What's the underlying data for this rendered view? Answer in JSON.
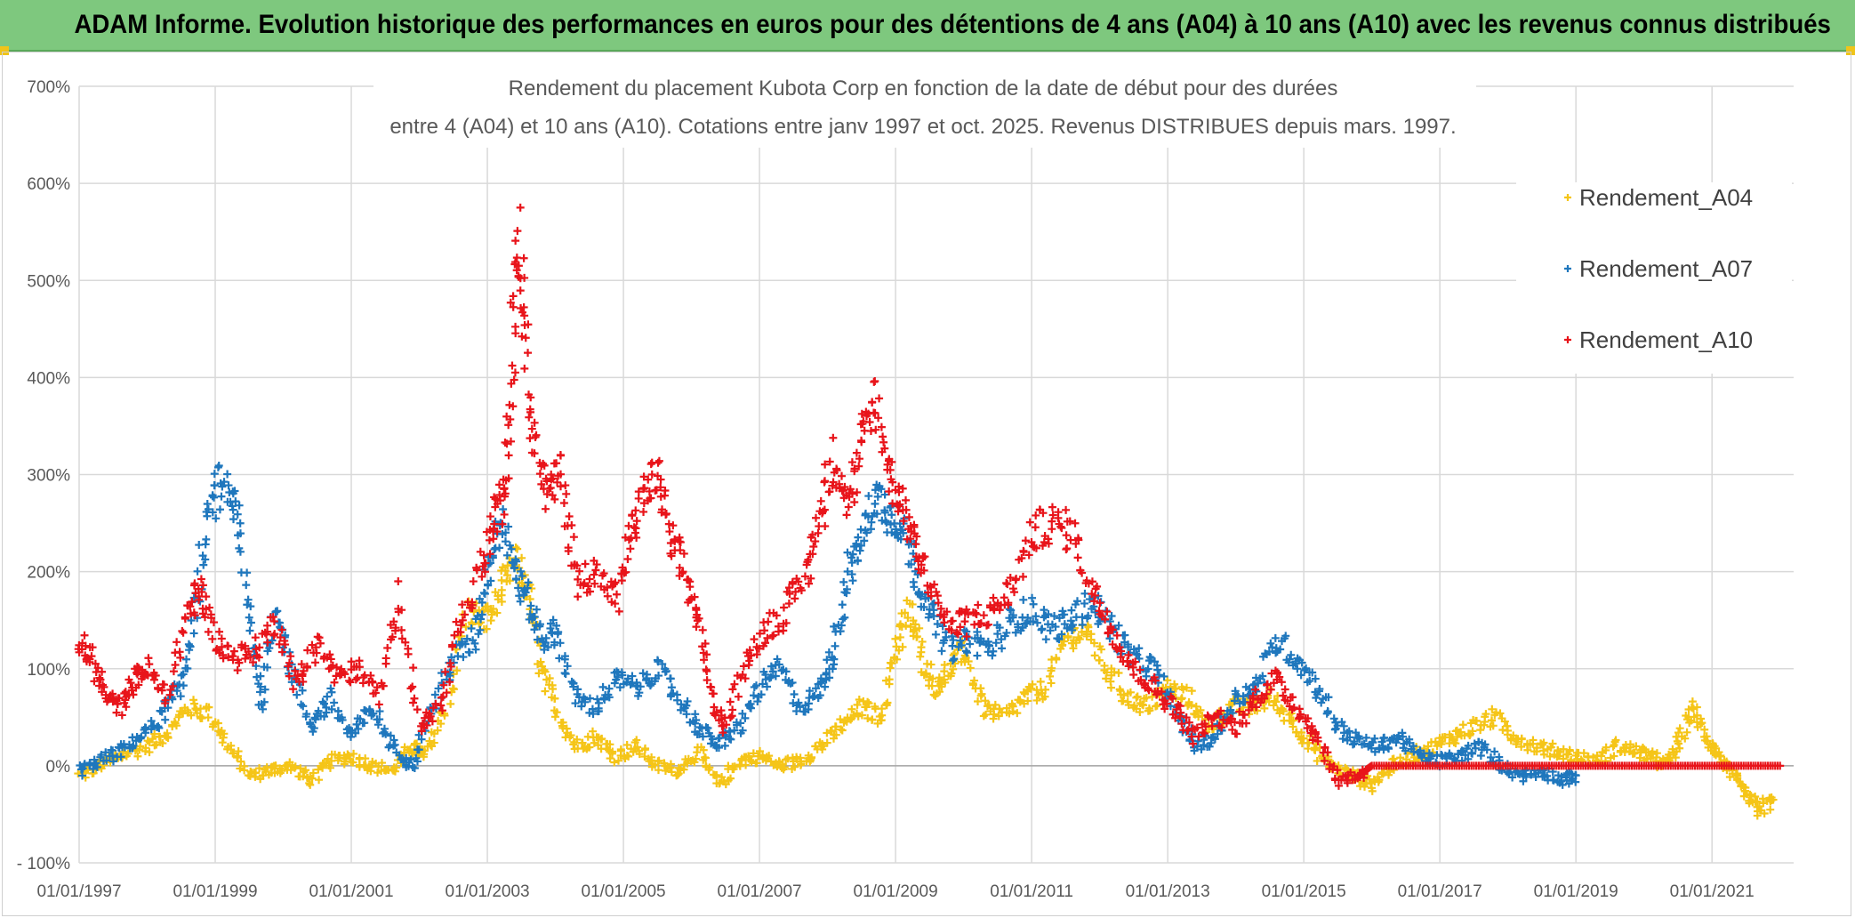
{
  "banner": {
    "title": "ADAM Informe. Evolution historique des performances en euros pour des détentions de 4 ans (A04) à 10 ans (A10) avec les revenus connus distribués",
    "background": "#7ec87e"
  },
  "chart_data": {
    "type": "scatter",
    "title_line1": "Rendement du placement Kubota Corp en fonction de la date de début pour des durées",
    "title_line2": "entre 4 (A04) et 10 ans (A10). Cotations entre janv 1997 et oct. 2025. Revenus DISTRIBUES depuis mars. 1997.",
    "xlabel": "",
    "ylabel": "",
    "xlim": [
      1997.0,
      2022.2
    ],
    "ylim": [
      -100,
      700
    ],
    "y_ticks": [
      -100,
      0,
      100,
      200,
      300,
      400,
      500,
      600,
      700
    ],
    "y_tick_labels": [
      "- 100%",
      "0%",
      "100%",
      "200%",
      "300%",
      "400%",
      "500%",
      "600%",
      "700%"
    ],
    "x_ticks": [
      1997,
      1999,
      2001,
      2003,
      2005,
      2007,
      2009,
      2011,
      2013,
      2015,
      2017,
      2019,
      2021
    ],
    "x_tick_labels": [
      "01/01/1997",
      "01/01/1999",
      "01/01/2001",
      "01/01/2003",
      "01/01/2005",
      "01/01/2007",
      "01/01/2009",
      "01/01/2011",
      "01/01/2013",
      "01/01/2015",
      "01/01/2017",
      "01/01/2019",
      "01/01/2021"
    ],
    "grid": true,
    "legend_position": "top-right",
    "marker": "+",
    "series": [
      {
        "name": "Rendement_A04",
        "color": "#f5c518",
        "x": [
          1997.0,
          1997.3,
          1997.6,
          1998.0,
          1998.3,
          1998.6,
          1998.9,
          1999.2,
          1999.5,
          1999.8,
          2000.1,
          2000.4,
          2000.7,
          2001.0,
          2001.3,
          2001.6,
          2001.9,
          2002.1,
          2002.4,
          2002.7,
          2003.0,
          2003.2,
          2003.4,
          2003.6,
          2003.8,
          2004.0,
          2004.3,
          2004.6,
          2004.9,
          2005.2,
          2005.5,
          2005.8,
          2006.1,
          2006.4,
          2006.7,
          2007.0,
          2007.3,
          2007.6,
          2007.9,
          2008.2,
          2008.5,
          2008.8,
          2009.0,
          2009.2,
          2009.4,
          2009.6,
          2009.8,
          2010.0,
          2010.3,
          2010.6,
          2010.9,
          2011.2,
          2011.5,
          2011.8,
          2012.1,
          2012.4,
          2012.7,
          2013.0,
          2013.3,
          2013.6,
          2013.9,
          2014.2,
          2014.5,
          2014.8,
          2015.1,
          2015.4,
          2015.7,
          2016.0,
          2016.3,
          2016.6,
          2016.9,
          2017.2,
          2017.5,
          2017.8,
          2018.1,
          2018.4,
          2018.7,
          2019.0,
          2019.3,
          2019.6,
          2019.9,
          2020.1,
          2020.3,
          2020.5,
          2020.7,
          2020.9,
          2021.1,
          2021.3,
          2021.5,
          2021.7,
          2021.9
        ],
        "values": [
          -10,
          0,
          10,
          20,
          35,
          60,
          55,
          20,
          -10,
          -5,
          0,
          -15,
          5,
          10,
          0,
          -5,
          20,
          10,
          60,
          160,
          150,
          180,
          210,
          180,
          100,
          60,
          20,
          30,
          10,
          20,
          0,
          -5,
          15,
          -20,
          5,
          10,
          0,
          5,
          20,
          40,
          60,
          50,
          120,
          160,
          110,
          80,
          100,
          120,
          60,
          50,
          70,
          80,
          130,
          140,
          100,
          70,
          60,
          80,
          70,
          40,
          60,
          60,
          70,
          50,
          20,
          0,
          -10,
          -20,
          0,
          10,
          20,
          30,
          40,
          50,
          30,
          20,
          15,
          10,
          5,
          20,
          15,
          10,
          0,
          20,
          60,
          30,
          10,
          -10,
          -30,
          -45,
          -35
        ]
      },
      {
        "name": "Rendement_A07",
        "color": "#1f77bd",
        "x": [
          1997.0,
          1997.3,
          1997.6,
          1997.9,
          1998.2,
          1998.5,
          1998.7,
          1998.9,
          1999.1,
          1999.3,
          1999.5,
          1999.7,
          1999.9,
          2000.1,
          2000.4,
          2000.7,
          2001.0,
          2001.3,
          2001.6,
          2001.9,
          2002.2,
          2002.5,
          2002.8,
          2003.0,
          2003.2,
          2003.4,
          2003.6,
          2003.8,
          2004.0,
          2004.3,
          2004.6,
          2004.9,
          2005.2,
          2005.5,
          2005.8,
          2006.1,
          2006.4,
          2006.7,
          2007.0,
          2007.3,
          2007.6,
          2007.9,
          2008.1,
          2008.3,
          2008.5,
          2008.7,
          2008.9,
          2009.1,
          2009.3,
          2009.5,
          2009.8,
          2010.1,
          2010.4,
          2010.7,
          2011.0,
          2011.3,
          2011.6,
          2011.9,
          2012.2,
          2012.5,
          2012.8,
          2013.1,
          2013.4,
          2013.7,
          2014.0,
          2014.3,
          2014.6,
          2014.9,
          2015.2,
          2015.5,
          2015.8,
          2016.1,
          2016.4,
          2016.7,
          2017.0,
          2017.3,
          2017.6,
          2017.9,
          2018.2,
          2018.5,
          2018.8,
          2019.0
        ],
        "values": [
          -5,
          5,
          15,
          30,
          50,
          80,
          160,
          260,
          290,
          270,
          150,
          60,
          170,
          100,
          40,
          70,
          30,
          60,
          20,
          0,
          60,
          110,
          130,
          200,
          260,
          200,
          170,
          130,
          140,
          70,
          60,
          90,
          80,
          100,
          70,
          40,
          20,
          40,
          80,
          100,
          60,
          80,
          120,
          200,
          230,
          280,
          260,
          250,
          200,
          160,
          120,
          130,
          120,
          150,
          160,
          140,
          150,
          170,
          140,
          110,
          100,
          60,
          20,
          30,
          70,
          80,
          130,
          110,
          80,
          40,
          25,
          20,
          30,
          10,
          5,
          10,
          20,
          0,
          -10,
          -5,
          -15,
          -10
        ]
      },
      {
        "name": "Rendement_A10",
        "color": "#e8141a",
        "x": [
          1997.0,
          1997.2,
          1997.4,
          1997.6,
          1997.8,
          1998.0,
          1998.3,
          1998.6,
          1998.8,
          1999.0,
          1999.3,
          1999.6,
          1999.9,
          2000.2,
          2000.5,
          2000.8,
          2001.1,
          2001.4,
          2001.7,
          2002.0,
          2002.3,
          2002.6,
          2002.9,
          2003.1,
          2003.25,
          2003.35,
          2003.45,
          2003.55,
          2003.7,
          2003.9,
          2004.1,
          2004.3,
          2004.6,
          2004.9,
          2005.1,
          2005.3,
          2005.5,
          2005.7,
          2005.9,
          2006.1,
          2006.3,
          2006.5,
          2006.8,
          2007.1,
          2007.4,
          2007.7,
          2007.9,
          2008.1,
          2008.3,
          2008.5,
          2008.7,
          2008.9,
          2009.1,
          2009.3,
          2009.5,
          2009.8,
          2010.1,
          2010.4,
          2010.7,
          2011.0,
          2011.3,
          2011.6,
          2011.9,
          2012.2,
          2012.5,
          2012.8,
          2013.1,
          2013.4,
          2013.7,
          2014.0,
          2014.3,
          2014.6,
          2014.9,
          2015.2,
          2015.5,
          2015.8,
          2016.0,
          2016.5,
          2017.0,
          2017.5,
          2018.0,
          2018.5,
          2019.0,
          2019.5,
          2020.0,
          2020.5,
          2021.0,
          2021.5,
          2022.0
        ],
        "values": [
          125,
          110,
          70,
          60,
          90,
          100,
          70,
          160,
          180,
          130,
          110,
          120,
          150,
          80,
          130,
          90,
          100,
          70,
          180,
          40,
          60,
          140,
          200,
          250,
          280,
          400,
          560,
          450,
          330,
          280,
          300,
          190,
          200,
          170,
          240,
          280,
          300,
          230,
          200,
          150,
          70,
          40,
          110,
          140,
          160,
          200,
          260,
          320,
          270,
          330,
          380,
          300,
          270,
          230,
          190,
          140,
          150,
          160,
          180,
          240,
          250,
          240,
          180,
          140,
          100,
          80,
          60,
          30,
          50,
          40,
          70,
          90,
          60,
          30,
          -15,
          -10,
          0,
          0,
          0,
          0,
          0,
          0,
          0,
          0,
          0,
          0,
          0,
          0,
          0
        ]
      }
    ]
  }
}
